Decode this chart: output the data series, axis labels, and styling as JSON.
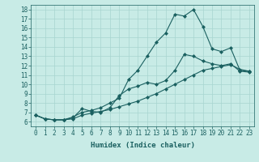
{
  "xlabel": "Humidex (Indice chaleur)",
  "ylabel": "",
  "xlim": [
    -0.5,
    23.5
  ],
  "ylim": [
    5.5,
    18.5
  ],
  "xticks": [
    0,
    1,
    2,
    3,
    4,
    5,
    6,
    7,
    8,
    9,
    10,
    11,
    12,
    13,
    14,
    15,
    16,
    17,
    18,
    19,
    20,
    21,
    22,
    23
  ],
  "yticks": [
    6,
    7,
    8,
    9,
    10,
    11,
    12,
    13,
    14,
    15,
    16,
    17,
    18
  ],
  "background_color": "#c8ebe6",
  "grid_color": "#a8d5d0",
  "line_color": "#1a6060",
  "line1_x": [
    0,
    1,
    2,
    3,
    4,
    5,
    6,
    7,
    8,
    9,
    10,
    11,
    12,
    13,
    14,
    15,
    16,
    17,
    18,
    19,
    20,
    21,
    22,
    23
  ],
  "line1_y": [
    6.7,
    6.3,
    6.2,
    6.2,
    6.4,
    7.4,
    7.1,
    7.0,
    7.5,
    8.8,
    9.5,
    9.8,
    10.2,
    10.0,
    10.4,
    11.5,
    13.2,
    13.0,
    12.5,
    12.2,
    12.0,
    12.2,
    11.4,
    11.3
  ],
  "line2_x": [
    0,
    1,
    2,
    3,
    4,
    5,
    6,
    7,
    8,
    9,
    10,
    11,
    12,
    13,
    14,
    15,
    16,
    17,
    18,
    19,
    20,
    21,
    22,
    23
  ],
  "line2_y": [
    6.7,
    6.3,
    6.2,
    6.2,
    6.5,
    7.0,
    7.2,
    7.5,
    8.0,
    8.5,
    10.5,
    11.5,
    13.0,
    14.5,
    15.5,
    17.5,
    17.3,
    18.0,
    16.2,
    13.8,
    13.5,
    13.9,
    11.5,
    11.4
  ],
  "line3_x": [
    0,
    1,
    2,
    3,
    4,
    5,
    6,
    7,
    8,
    9,
    10,
    11,
    12,
    13,
    14,
    15,
    16,
    17,
    18,
    19,
    20,
    21,
    22,
    23
  ],
  "line3_y": [
    6.7,
    6.3,
    6.2,
    6.2,
    6.3,
    6.7,
    6.9,
    7.1,
    7.3,
    7.6,
    7.9,
    8.2,
    8.6,
    9.0,
    9.5,
    10.0,
    10.5,
    11.0,
    11.5,
    11.7,
    11.9,
    12.1,
    11.6,
    11.4
  ],
  "marker": "D",
  "markersize": 2,
  "linewidth": 0.8,
  "tick_fontsize": 5.5,
  "label_fontsize": 6.5
}
